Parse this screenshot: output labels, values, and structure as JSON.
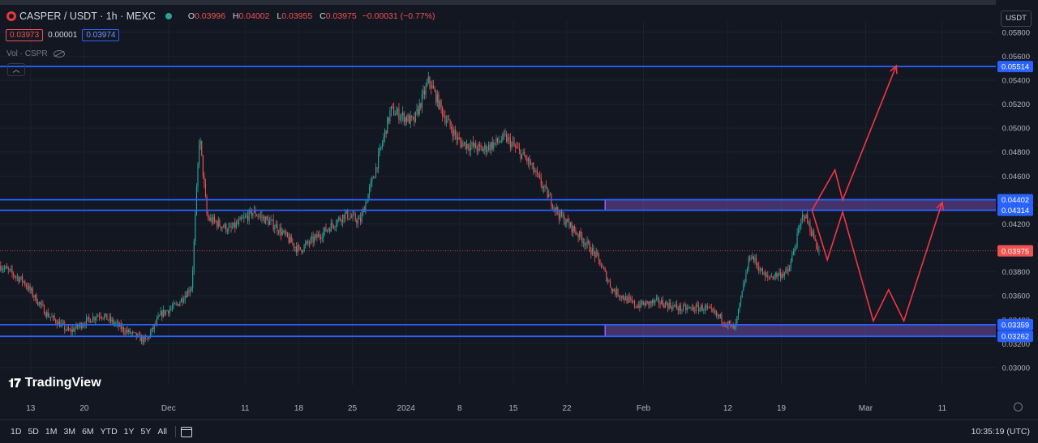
{
  "header": {
    "symbol": "CASPER / USDT · 1h · MEXC",
    "open_label": "O",
    "open": "0.03996",
    "high_label": "H",
    "high": "0.04002",
    "low_label": "L",
    "low": "0.03955",
    "close_label": "C",
    "close": "0.03975",
    "change": "−0.00031 (−0.77%)",
    "sell_price": "0.03973",
    "spread": "0.00001",
    "buy_price": "0.03974",
    "vol_label": "Vol · CSPR",
    "collapse_glyph": "︿"
  },
  "currency_button": "USDT",
  "colors": {
    "background": "#131722",
    "up": "#26a69a",
    "down": "#ef5350",
    "level": "#2962ff",
    "zone": "#7e57c2",
    "projection": "#f23645"
  },
  "icons": [
    "status-dot-icon",
    "eye-icon",
    "chevron-up-icon",
    "calendar-icon",
    "gear-icon",
    "tradingview-logo-icon"
  ],
  "chart_data": {
    "type": "candlestick",
    "y_range": [
      0.03,
      0.0565
    ],
    "y_ticks": [
      "0.05800",
      "0.05600",
      "0.05400",
      "0.05200",
      "0.05000",
      "0.04800",
      "0.04600",
      "0.04200",
      "0.03800",
      "0.03600",
      "0.03400",
      "0.03200",
      "0.03000"
    ],
    "y_tick_values": [
      0.058,
      0.056,
      0.054,
      0.052,
      0.05,
      0.048,
      0.046,
      0.042,
      0.038,
      0.036,
      0.034,
      0.032,
      0.03
    ],
    "x_ticks": [
      "13",
      "20",
      "Dec",
      "11",
      "18",
      "25",
      "2024",
      "8",
      "15",
      "22",
      "Feb",
      "12",
      "19",
      "Mar",
      "11"
    ],
    "x_tick_dates": [
      "2023-11-13",
      "2023-11-20",
      "2023-12-01",
      "2023-12-11",
      "2023-12-18",
      "2023-12-25",
      "2024-01-01",
      "2024-01-08",
      "2024-01-15",
      "2024-01-22",
      "2024-02-01",
      "2024-02-12",
      "2024-02-19",
      "2024-03-01",
      "2024-03-11"
    ],
    "x_range": [
      "2023-11-09",
      "2024-03-18"
    ],
    "price_path": [
      [
        "2023-11-09",
        0.0385
      ],
      [
        "2023-11-12",
        0.0372
      ],
      [
        "2023-11-15",
        0.0345
      ],
      [
        "2023-11-18",
        0.033
      ],
      [
        "2023-11-20",
        0.0338
      ],
      [
        "2023-11-22",
        0.0345
      ],
      [
        "2023-11-25",
        0.0332
      ],
      [
        "2023-11-28",
        0.0322
      ],
      [
        "2023-11-30",
        0.0345
      ],
      [
        "2023-12-02",
        0.0352
      ],
      [
        "2023-12-04",
        0.0368
      ],
      [
        "2023-12-05",
        0.0495
      ],
      [
        "2023-12-06",
        0.0425
      ],
      [
        "2023-12-09",
        0.0415
      ],
      [
        "2023-12-12",
        0.043
      ],
      [
        "2023-12-15",
        0.0418
      ],
      [
        "2023-12-18",
        0.0398
      ],
      [
        "2023-12-21",
        0.0412
      ],
      [
        "2023-12-24",
        0.0428
      ],
      [
        "2023-12-26",
        0.0422
      ],
      [
        "2023-12-28",
        0.0465
      ],
      [
        "2023-12-30",
        0.0515
      ],
      [
        "2024-01-02",
        0.0505
      ],
      [
        "2024-01-04",
        0.054
      ],
      [
        "2024-01-06",
        0.051
      ],
      [
        "2024-01-08",
        0.0488
      ],
      [
        "2024-01-11",
        0.0482
      ],
      [
        "2024-01-14",
        0.0492
      ],
      [
        "2024-01-17",
        0.0472
      ],
      [
        "2024-01-19",
        0.045
      ],
      [
        "2024-01-21",
        0.0428
      ],
      [
        "2024-01-24",
        0.0408
      ],
      [
        "2024-01-26",
        0.0392
      ],
      [
        "2024-01-28",
        0.0365
      ],
      [
        "2024-01-31",
        0.0352
      ],
      [
        "2024-02-03",
        0.0355
      ],
      [
        "2024-02-06",
        0.0349
      ],
      [
        "2024-02-09",
        0.035
      ],
      [
        "2024-02-11",
        0.0342
      ],
      [
        "2024-02-13",
        0.0332
      ],
      [
        "2024-02-15",
        0.0395
      ],
      [
        "2024-02-17",
        0.0375
      ],
      [
        "2024-02-20",
        0.038
      ],
      [
        "2024-02-22",
        0.043
      ],
      [
        "2024-02-24",
        0.03975
      ]
    ],
    "last_price": 0.03975,
    "last_price_label": "0.03975",
    "levels": [
      {
        "value": 0.05514,
        "label": "0.05514"
      },
      {
        "value": 0.04402,
        "label": "0.04402"
      },
      {
        "value": 0.04314,
        "label": "0.04314"
      },
      {
        "value": 0.03359,
        "label": "0.03359"
      },
      {
        "value": 0.03262,
        "label": "0.03262"
      }
    ],
    "zones": [
      {
        "from": "2024-01-27",
        "to": "2024-03-20",
        "low": 0.04314,
        "high": 0.04402
      },
      {
        "from": "2024-01-27",
        "to": "2024-03-20",
        "low": 0.03262,
        "high": 0.03359
      }
    ],
    "projection_paths": [
      [
        [
          "2024-02-23",
          0.04314
        ],
        [
          "2024-02-26",
          0.0465
        ],
        [
          "2024-02-27",
          0.044
        ],
        [
          "2024-03-05",
          0.0552
        ]
      ],
      [
        [
          "2024-02-23",
          0.04314
        ],
        [
          "2024-02-25",
          0.039
        ],
        [
          "2024-02-27",
          0.043
        ],
        [
          "2024-03-02",
          0.0339
        ],
        [
          "2024-03-04",
          0.0365
        ],
        [
          "2024-03-06",
          0.0339
        ],
        [
          "2024-03-11",
          0.0438
        ]
      ]
    ]
  },
  "timeframes": [
    "1D",
    "5D",
    "1M",
    "3M",
    "6M",
    "YTD",
    "1Y",
    "5Y",
    "All"
  ],
  "clock": "10:35:19 (UTC)",
  "watermark": "TradingView"
}
